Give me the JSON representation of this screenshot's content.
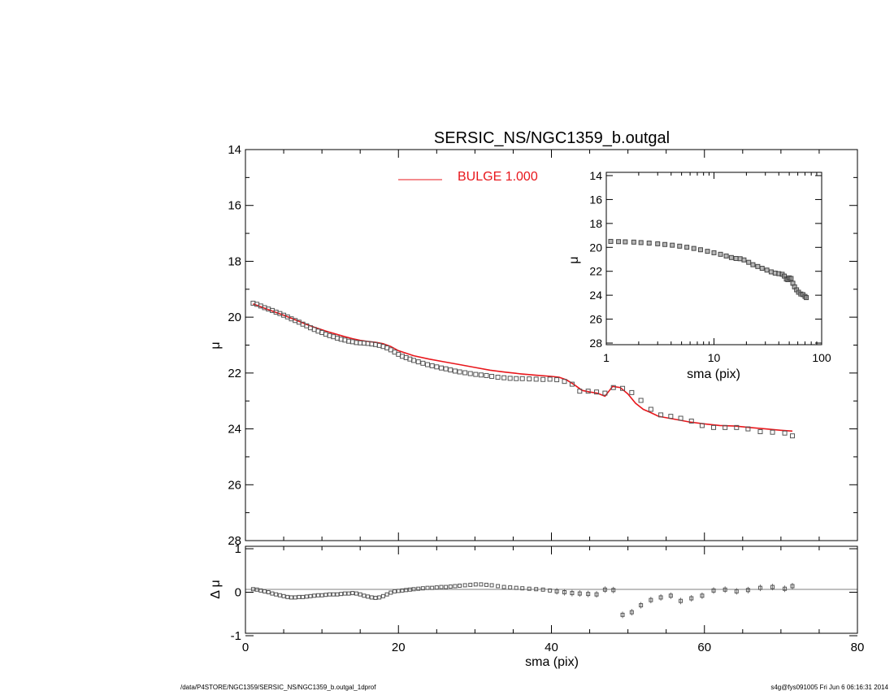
{
  "colors": {
    "model": "#e8171c",
    "data": "#555555",
    "axis": "#000000"
  },
  "footer": {
    "left": "/data/P4STORE/NGC1359/SERSIC_NS/NGC1359_b.outgal_1dprof",
    "right": "s4g@fys091005  Fri Jun  6 06:16:31 2014"
  },
  "chart_data": [
    {
      "name": "main-profile",
      "type": "scatter",
      "title": "SERSIC_NS/NGC1359_b.outgal",
      "xlabel": "",
      "ylabel": "μ",
      "xlim": [
        0,
        80
      ],
      "ylim": [
        28,
        14
      ],
      "y_inverted": true,
      "yticks": [
        14,
        16,
        18,
        20,
        22,
        24,
        26,
        28
      ],
      "ytick_labels": [
        "14",
        "16",
        "18",
        "20",
        "22",
        "24",
        "26",
        "28"
      ],
      "legend": {
        "label": "BULGE  1.000",
        "placement": "top-center"
      },
      "series": [
        {
          "name": "data",
          "marker": "square",
          "x": [
            1.0,
            1.5,
            2.0,
            2.5,
            3.0,
            3.5,
            4.0,
            4.5,
            5.0,
            5.5,
            6.0,
            6.5,
            7.0,
            7.5,
            8.0,
            8.5,
            9.0,
            9.5,
            10.0,
            10.5,
            11.0,
            11.5,
            12.0,
            12.5,
            13.0,
            13.5,
            14.0,
            14.5,
            15.0,
            15.5,
            16.0,
            16.5,
            17.0,
            17.5,
            18.0,
            18.5,
            19.0,
            19.5,
            20.0,
            20.5,
            21.0,
            21.5,
            22.0,
            22.6,
            23.2,
            23.8,
            24.4,
            25.0,
            25.6,
            26.2,
            26.8,
            27.4,
            28.0,
            28.7,
            29.4,
            30.1,
            30.8,
            31.5,
            32.2,
            33.0,
            33.8,
            34.6,
            35.4,
            36.2,
            37.1,
            38.0,
            38.9,
            39.8,
            40.7,
            41.7,
            42.7,
            43.7,
            44.8,
            45.9,
            47.0,
            48.1,
            49.3,
            50.5,
            51.7,
            53.0,
            54.3,
            55.6,
            56.9,
            58.3,
            59.7,
            61.2,
            62.7,
            64.2,
            65.7,
            67.3,
            68.9,
            70.5,
            71.5
          ],
          "y": [
            19.5,
            19.54,
            19.6,
            19.66,
            19.71,
            19.76,
            19.82,
            19.87,
            19.93,
            19.99,
            20.06,
            20.12,
            20.18,
            20.25,
            20.31,
            20.38,
            20.44,
            20.5,
            20.55,
            20.61,
            20.66,
            20.7,
            20.75,
            20.79,
            20.82,
            20.86,
            20.88,
            20.91,
            20.92,
            20.93,
            20.94,
            20.96,
            20.98,
            21.01,
            21.05,
            21.1,
            21.17,
            21.25,
            21.33,
            21.4,
            21.45,
            21.5,
            21.55,
            21.6,
            21.65,
            21.7,
            21.74,
            21.78,
            21.82,
            21.85,
            21.89,
            21.93,
            21.96,
            21.99,
            22.02,
            22.05,
            22.07,
            22.09,
            22.12,
            22.15,
            22.17,
            22.19,
            22.2,
            22.2,
            22.21,
            22.22,
            22.23,
            22.22,
            22.24,
            22.3,
            22.4,
            22.65,
            22.65,
            22.68,
            22.72,
            22.52,
            22.55,
            22.7,
            22.98,
            23.3,
            23.5,
            23.55,
            23.62,
            23.72,
            23.88,
            23.95,
            23.95,
            23.95,
            24.0,
            24.1,
            24.12,
            24.15,
            24.25
          ]
        },
        {
          "name": "model",
          "type": "line",
          "x": [
            1.0,
            2.0,
            3.0,
            4.0,
            5.0,
            6.0,
            7.0,
            8.0,
            9.0,
            10.0,
            11.0,
            12.0,
            13.0,
            14.0,
            15.0,
            16.0,
            17.0,
            18.0,
            19.0,
            20.0,
            22.0,
            24.0,
            26.0,
            28.0,
            30.0,
            32.0,
            34.0,
            36.0,
            38.0,
            40.0,
            41.0,
            42.0,
            43.0,
            44.0,
            45.0,
            46.0,
            47.0,
            48.0,
            49.0,
            50.0,
            51.0,
            52.0,
            53.0,
            54.0,
            56.0,
            58.0,
            60.0,
            62.0,
            64.0,
            66.0,
            68.0,
            70.0,
            71.5
          ],
          "y": [
            19.52,
            19.63,
            19.73,
            19.83,
            19.93,
            20.04,
            20.15,
            20.26,
            20.36,
            20.45,
            20.54,
            20.62,
            20.7,
            20.77,
            20.83,
            20.87,
            20.9,
            20.95,
            21.05,
            21.2,
            21.38,
            21.5,
            21.6,
            21.7,
            21.8,
            21.9,
            21.97,
            22.03,
            22.08,
            22.12,
            22.15,
            22.25,
            22.42,
            22.62,
            22.68,
            22.72,
            22.83,
            22.48,
            22.52,
            22.75,
            23.08,
            23.3,
            23.42,
            23.55,
            23.65,
            23.75,
            23.82,
            23.88,
            23.9,
            23.95,
            24.0,
            24.05,
            24.08
          ]
        }
      ]
    },
    {
      "name": "residuals",
      "type": "scatter",
      "xlabel": "sma (pix)",
      "ylabel": "Δ μ",
      "xlim": [
        0,
        80
      ],
      "ylim": [
        -1,
        1
      ],
      "xticks": [
        0,
        20,
        40,
        60,
        80
      ],
      "xtick_labels": [
        "0",
        "20",
        "40",
        "60",
        "80"
      ],
      "yticks": [
        -1,
        0,
        1
      ],
      "ytick_labels": [
        "-1",
        "0",
        "1"
      ],
      "series": [
        {
          "name": "residual",
          "marker": "square",
          "x": [
            1.0,
            1.5,
            2.0,
            2.5,
            3.0,
            3.5,
            4.0,
            4.5,
            5.0,
            5.5,
            6.0,
            6.5,
            7.0,
            7.5,
            8.0,
            8.5,
            9.0,
            9.5,
            10.0,
            10.5,
            11.0,
            11.5,
            12.0,
            12.5,
            13.0,
            13.5,
            14.0,
            14.5,
            15.0,
            15.5,
            16.0,
            16.5,
            17.0,
            17.5,
            18.0,
            18.5,
            19.0,
            19.5,
            20.0,
            20.5,
            21.0,
            21.5,
            22.0,
            22.6,
            23.2,
            23.8,
            24.4,
            25.0,
            25.6,
            26.2,
            26.8,
            27.4,
            28.0,
            28.7,
            29.4,
            30.1,
            30.8,
            31.5,
            32.2,
            33.0,
            33.8,
            34.6,
            35.4,
            36.2,
            37.1,
            38.0,
            38.9,
            39.8,
            40.7,
            41.7,
            42.7,
            43.7,
            44.8,
            45.9,
            47.0,
            48.1,
            49.3,
            50.5,
            51.7,
            53.0,
            54.3,
            55.6,
            56.9,
            58.3,
            59.7,
            61.2,
            62.7,
            64.2,
            65.7,
            67.3,
            68.9,
            70.5,
            71.5
          ],
          "y": [
            0.07,
            0.06,
            0.04,
            0.02,
            0.0,
            -0.03,
            -0.05,
            -0.07,
            -0.09,
            -0.11,
            -0.12,
            -0.12,
            -0.11,
            -0.11,
            -0.1,
            -0.09,
            -0.08,
            -0.07,
            -0.07,
            -0.06,
            -0.05,
            -0.05,
            -0.05,
            -0.04,
            -0.03,
            -0.03,
            -0.02,
            -0.03,
            -0.05,
            -0.08,
            -0.1,
            -0.12,
            -0.13,
            -0.12,
            -0.09,
            -0.05,
            -0.01,
            0.02,
            0.03,
            0.04,
            0.05,
            0.06,
            0.07,
            0.08,
            0.09,
            0.1,
            0.1,
            0.11,
            0.12,
            0.12,
            0.13,
            0.14,
            0.15,
            0.16,
            0.17,
            0.18,
            0.18,
            0.17,
            0.16,
            0.14,
            0.12,
            0.11,
            0.1,
            0.09,
            0.08,
            0.07,
            0.06,
            0.04,
            0.02,
            0.0,
            -0.02,
            -0.03,
            -0.04,
            -0.05,
            0.06,
            0.05,
            -0.52,
            -0.46,
            -0.3,
            -0.18,
            -0.12,
            -0.08,
            -0.2,
            -0.14,
            -0.08,
            0.04,
            0.06,
            0.02,
            0.05,
            0.1,
            0.12,
            0.08,
            0.14
          ]
        }
      ]
    },
    {
      "name": "inset-log-profile",
      "type": "scatter",
      "xlabel": "sma (pix)",
      "ylabel": "μ",
      "x_scale": "log",
      "xlim": [
        1,
        100
      ],
      "ylim": [
        28,
        14
      ],
      "y_inverted": true,
      "xticks": [
        1,
        10,
        100
      ],
      "xtick_labels": [
        "1",
        "10",
        "100"
      ],
      "yticks": [
        14,
        16,
        18,
        20,
        22,
        24,
        26,
        28
      ],
      "ytick_labels": [
        "14",
        "16",
        "18",
        "20",
        "22",
        "24",
        "26",
        "28"
      ],
      "series": [
        {
          "name": "data",
          "marker": "square",
          "x": [
            1.1,
            1.3,
            1.5,
            1.8,
            2.1,
            2.5,
            3.0,
            3.5,
            4.1,
            4.8,
            5.6,
            6.5,
            7.5,
            8.7,
            10.0,
            11.5,
            13.0,
            14.5,
            16.0,
            17.5,
            19.0,
            21.0,
            23.0,
            25.5,
            28.0,
            31.0,
            34.0,
            37.0,
            40.0,
            43.0,
            45.0,
            47.0,
            48.5,
            50.0,
            52.0,
            54.0,
            56.0,
            58.5,
            61.0,
            64.0,
            67.0,
            70.0,
            72.0
          ],
          "y": [
            19.5,
            19.52,
            19.54,
            19.56,
            19.6,
            19.64,
            19.7,
            19.76,
            19.82,
            19.9,
            19.99,
            20.09,
            20.2,
            20.33,
            20.45,
            20.58,
            20.72,
            20.85,
            20.93,
            20.95,
            21.05,
            21.25,
            21.45,
            21.6,
            21.75,
            21.9,
            22.05,
            22.15,
            22.2,
            22.25,
            22.4,
            22.65,
            22.7,
            22.55,
            22.6,
            23.0,
            23.3,
            23.55,
            23.75,
            23.9,
            23.95,
            24.1,
            24.2
          ]
        }
      ]
    }
  ]
}
